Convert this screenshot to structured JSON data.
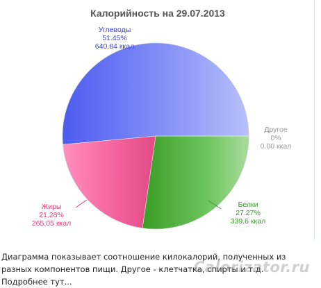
{
  "chart_data": {
    "type": "pie",
    "title": "Калорийность на 29.07.2013",
    "slices": [
      {
        "name": "Углеводы",
        "percent": 51.45,
        "percent_label": "51.45%",
        "kcal_label": "640.84 ккал",
        "value": 640.84,
        "color": "#6472f5"
      },
      {
        "name": "Другое",
        "percent": 0,
        "percent_label": "0%",
        "kcal_label": "0.00 ккал",
        "value": 0,
        "color": "#aaaaaa"
      },
      {
        "name": "Белки",
        "percent": 27.27,
        "percent_label": "27.27%",
        "kcal_label": "339.6 ккал",
        "value": 339.6,
        "color": "#4caf3a"
      },
      {
        "name": "Жиры",
        "percent": 21.28,
        "percent_label": "21.28%",
        "kcal_label": "265.05 ккал",
        "value": 265.05,
        "color": "#f2609c"
      }
    ],
    "label_colors": {
      "Углеводы": "#3b46d9",
      "Другое": "#999999",
      "Белки": "#3a9a2a",
      "Жиры": "#e0407c"
    }
  },
  "footer": {
    "description": "Диаграмма показывает соотношение килокалорий, полученных из разных компонентов пищи. Другое - клетчатка, спирты и т.д. Подробнее тут..."
  },
  "watermark": "Calorizator.ru"
}
